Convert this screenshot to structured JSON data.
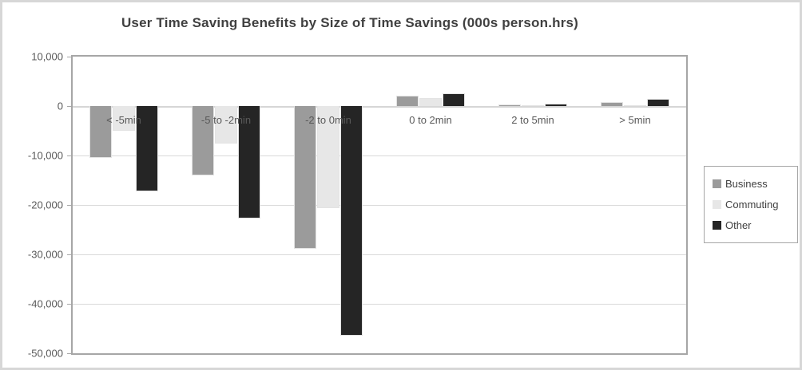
{
  "chart": {
    "title": "User Time Saving Benefits by Size of Time Savings (000s person.hrs)"
  },
  "chart_data": {
    "type": "bar",
    "title": "User Time Saving Benefits by Size of Time Savings (000s person.hrs)",
    "categories": [
      "< -5min",
      "-5 to -2min",
      "-2 to 0min",
      "0 to 2min",
      "2 to 5min",
      "> 5min"
    ],
    "series": [
      {
        "name": "Business",
        "color": "#9b9b9b",
        "values": [
          -10500,
          -14000,
          -28800,
          2100,
          300,
          800
        ]
      },
      {
        "name": "Commuting",
        "color": "#e7e7e7",
        "values": [
          -5000,
          -7500,
          -20700,
          1600,
          100,
          100
        ]
      },
      {
        "name": "Other",
        "color": "#252525",
        "values": [
          -17200,
          -22700,
          -46500,
          2600,
          500,
          1500
        ]
      }
    ],
    "xlabel": "",
    "ylabel": "",
    "ylim": [
      -50000,
      10000
    ],
    "ytick_step": 10000,
    "ytick_labels": [
      "10,000",
      "0",
      "-10,000",
      "-20,000",
      "-30,000",
      "-40,000",
      "-50,000"
    ],
    "grid": true,
    "legend_position": "right",
    "colors": {
      "title_text": "#404040",
      "axis_text": "#595959",
      "gridline": "#d9d9d9",
      "plot_border": "#a6a6a6",
      "outer_border": "#d7d7d7"
    }
  }
}
